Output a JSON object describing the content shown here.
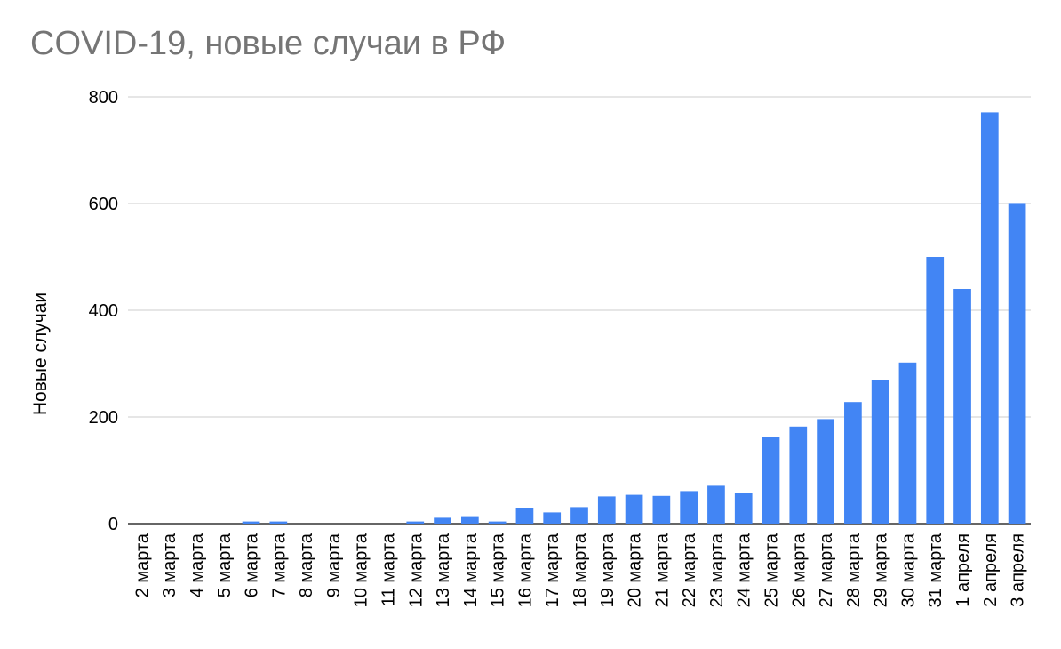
{
  "chart_data": {
    "type": "bar",
    "title": "COVID-19, новые случаи в РФ",
    "xlabel": "",
    "ylabel": "Новые случаи",
    "ylim": [
      0,
      800
    ],
    "yticks": [
      0,
      200,
      400,
      600,
      800
    ],
    "grid": true,
    "legend": "none",
    "bar_color": "#4285f4",
    "categories": [
      "2 марта",
      "3 марта",
      "4 марта",
      "5 марта",
      "6 марта",
      "7 марта",
      "8 марта",
      "9 марта",
      "10 марта",
      "11 марта",
      "12 марта",
      "13 марта",
      "14 марта",
      "15 марта",
      "16 марта",
      "17 марта",
      "18 марта",
      "19 марта",
      "20 марта",
      "21 марта",
      "22 марта",
      "23 марта",
      "24 марта",
      "25 марта",
      "26 марта",
      "27 марта",
      "28 марта",
      "29 марта",
      "30 марта",
      "31 марта",
      "1 апреля",
      "2 апреля",
      "3 апреля"
    ],
    "values": [
      0,
      0,
      0,
      0,
      4,
      4,
      0,
      0,
      0,
      0,
      4,
      11,
      14,
      4,
      30,
      21,
      31,
      51,
      54,
      52,
      61,
      71,
      57,
      163,
      182,
      196,
      228,
      270,
      302,
      500,
      440,
      771,
      601
    ]
  }
}
